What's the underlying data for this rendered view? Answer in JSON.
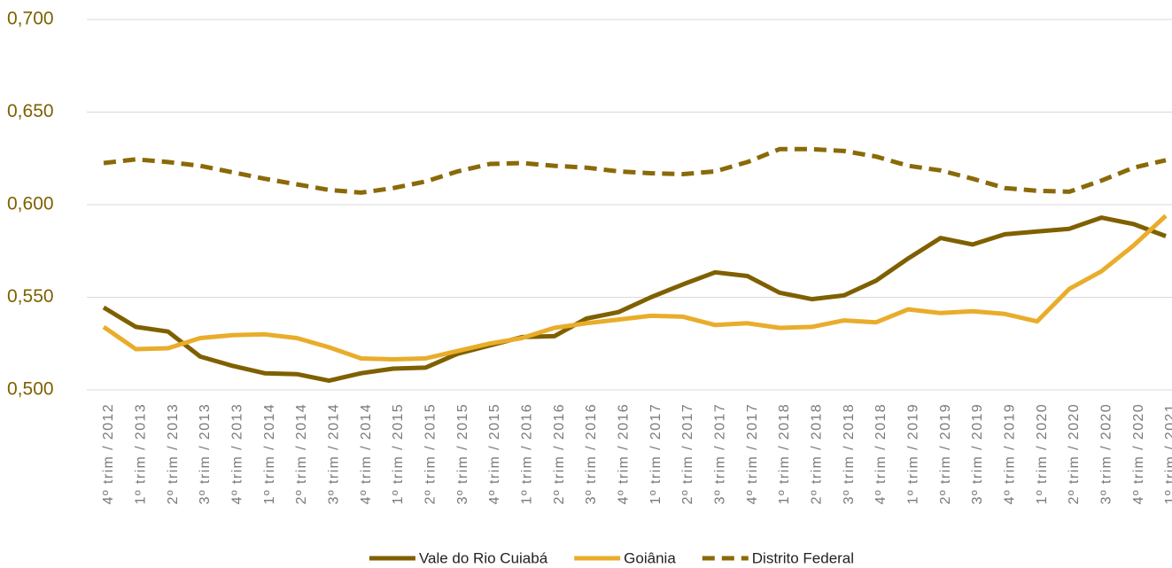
{
  "chart_data": {
    "type": "line",
    "categories": [
      "4º trim / 2012",
      "1º trim / 2013",
      "2º trim / 2013",
      "3º trim / 2013",
      "4º trim / 2013",
      "1º trim / 2014",
      "2º trim / 2014",
      "3º trim / 2014",
      "4º trim / 2014",
      "1º trim / 2015",
      "2º trim / 2015",
      "3º trim / 2015",
      "4º trim / 2015",
      "1º trim / 2016",
      "2º trim / 2016",
      "3º trim / 2016",
      "4º trim / 2016",
      "1º trim / 2017",
      "2º trim / 2017",
      "3º trim / 2017",
      "4º trim / 2017",
      "1º trim / 2018",
      "2º trim / 2018",
      "3º trim / 2018",
      "4º trim / 2018",
      "1º trim / 2019",
      "2º trim / 2019",
      "3º trim / 2019",
      "4º trim / 2019",
      "1º trim / 2020",
      "2º trim / 2020",
      "3º trim / 2020",
      "4º trim / 2020",
      "1º trim / 2021"
    ],
    "series": [
      {
        "name": "Vale do Rio Cuiabá",
        "color": "#7f6000",
        "style": "solid",
        "values": [
          0.5445,
          0.534,
          0.5315,
          0.518,
          0.513,
          0.509,
          0.5085,
          0.505,
          0.509,
          0.5115,
          0.512,
          0.5195,
          0.524,
          0.5285,
          0.529,
          0.5385,
          0.542,
          0.55,
          0.557,
          0.5635,
          0.5615,
          0.5525,
          0.549,
          0.551,
          0.559,
          0.571,
          0.582,
          0.5785,
          0.584,
          0.5855,
          0.587,
          0.593,
          0.5895,
          0.583
        ]
      },
      {
        "name": "Goiânia",
        "color": "#e9ad2b",
        "style": "solid",
        "values": [
          0.534,
          0.522,
          0.5225,
          0.528,
          0.5295,
          0.53,
          0.528,
          0.523,
          0.517,
          0.5165,
          0.517,
          0.521,
          0.525,
          0.528,
          0.5335,
          0.536,
          0.538,
          0.54,
          0.5395,
          0.535,
          0.536,
          0.5335,
          0.534,
          0.5375,
          0.5365,
          0.5435,
          0.5415,
          0.5425,
          0.541,
          0.537,
          0.5545,
          0.564,
          0.578,
          0.594
        ]
      },
      {
        "name": "Distrito Federal",
        "color": "#8a6a08",
        "style": "dashed",
        "values": [
          0.6225,
          0.6245,
          0.623,
          0.621,
          0.6175,
          0.614,
          0.611,
          0.608,
          0.6065,
          0.609,
          0.6125,
          0.618,
          0.622,
          0.6225,
          0.621,
          0.62,
          0.618,
          0.617,
          0.6165,
          0.618,
          0.623,
          0.63,
          0.63,
          0.629,
          0.626,
          0.621,
          0.6185,
          0.614,
          0.609,
          0.6075,
          0.607,
          0.613,
          0.62,
          0.624
        ]
      }
    ],
    "ylim": [
      0.5,
      0.7
    ],
    "yticks": [
      {
        "value": 0.5,
        "label": "0,500"
      },
      {
        "value": 0.55,
        "label": "0,550"
      },
      {
        "value": 0.6,
        "label": "0,600"
      },
      {
        "value": 0.65,
        "label": "0,650"
      },
      {
        "value": 0.7,
        "label": "0,700"
      }
    ],
    "grid": true,
    "legend": "bottom"
  }
}
